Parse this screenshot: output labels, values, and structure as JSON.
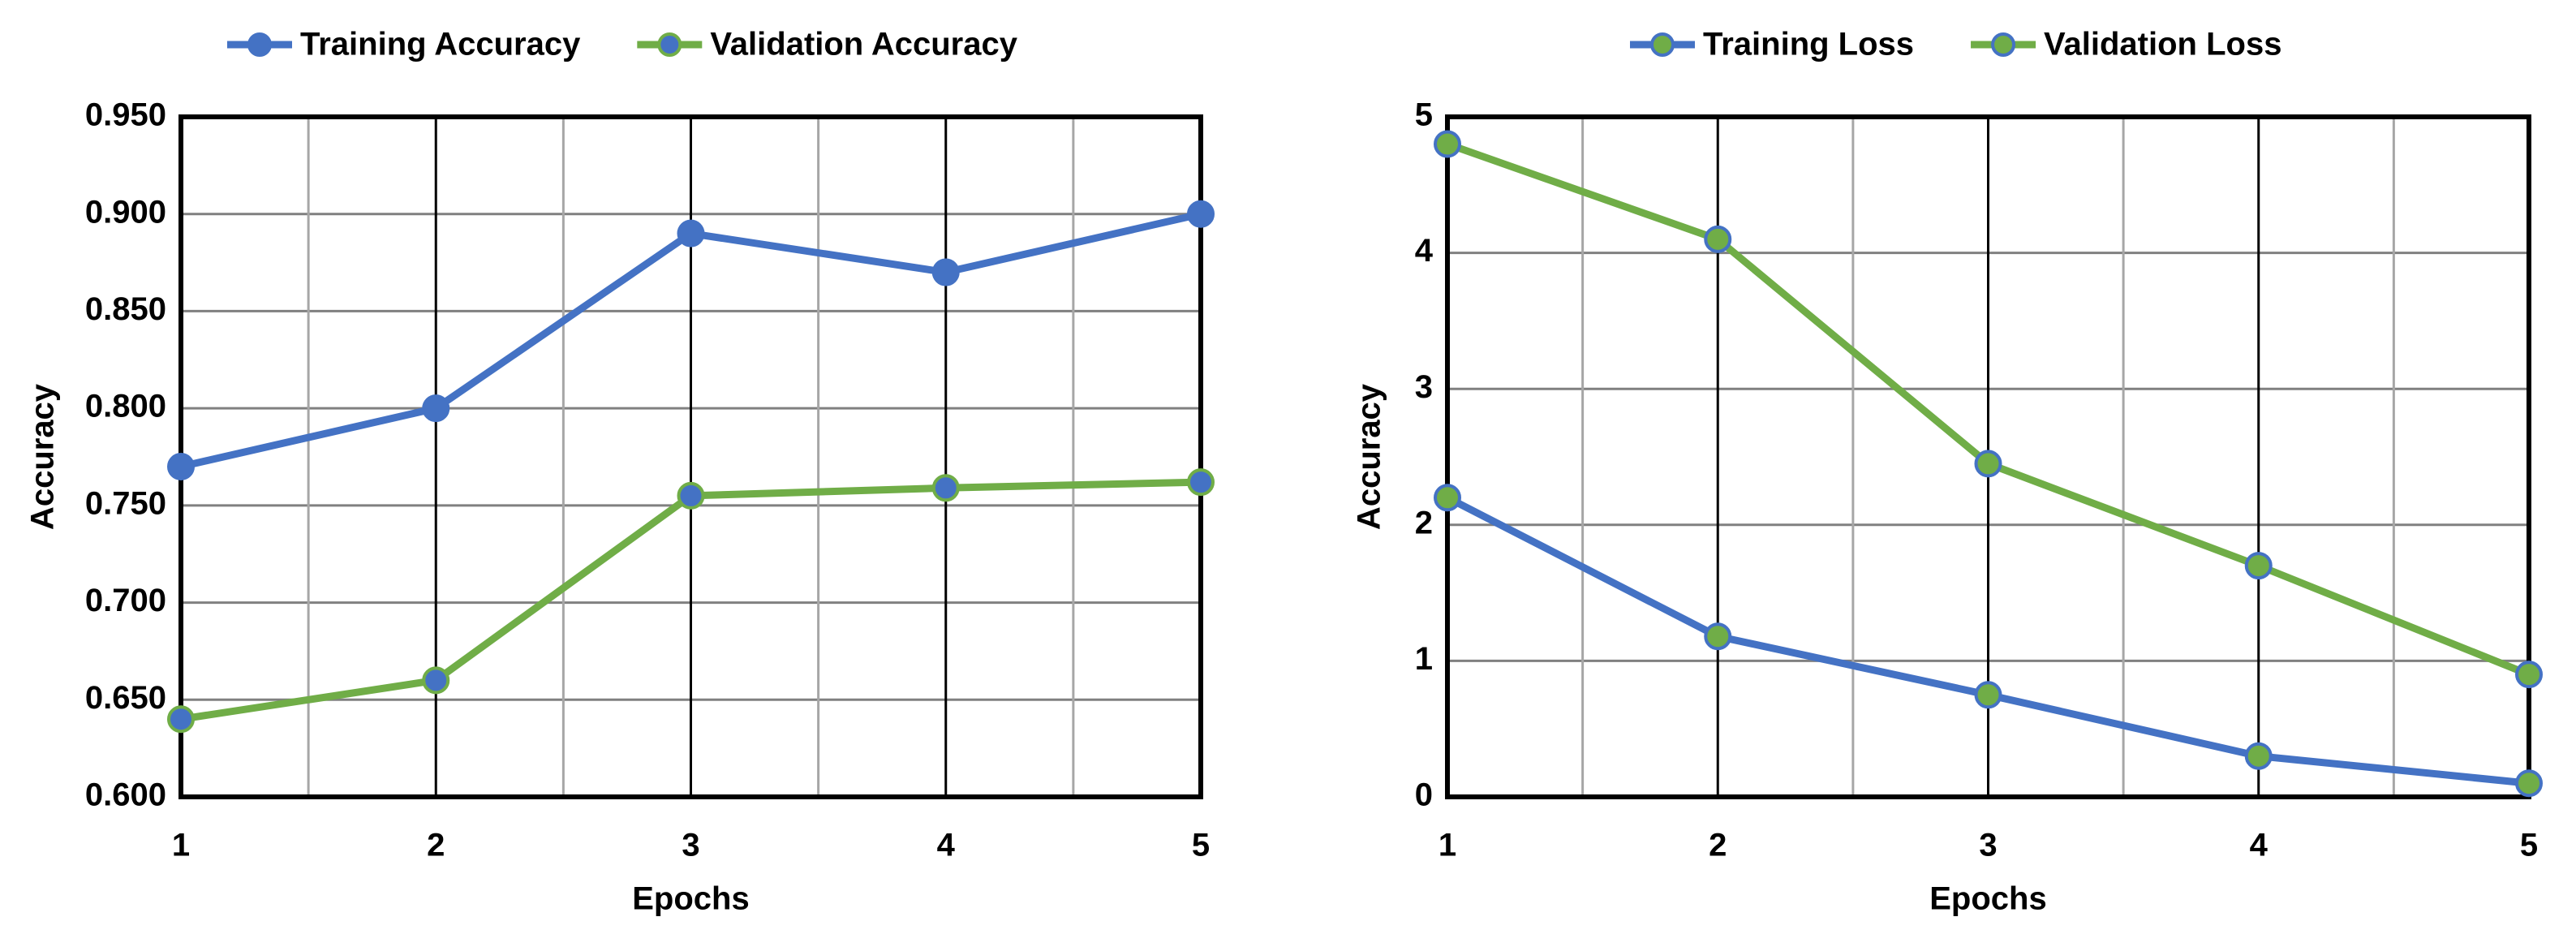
{
  "chart_data": [
    {
      "type": "line",
      "xlabel": "Epochs",
      "ylabel": "Accuracy",
      "x": [
        1,
        2,
        3,
        4,
        5
      ],
      "xlim": [
        1,
        5
      ],
      "xticks": [
        1,
        2,
        3,
        4,
        5
      ],
      "ylim": [
        0.6,
        0.95
      ],
      "yticks": [
        {
          "value": 0.6,
          "label": "0.600"
        },
        {
          "value": 0.65,
          "label": "0.650"
        },
        {
          "value": 0.7,
          "label": "0.700"
        },
        {
          "value": 0.75,
          "label": "0.750"
        },
        {
          "value": 0.8,
          "label": "0.800"
        },
        {
          "value": 0.85,
          "label": "0.850"
        },
        {
          "value": 0.9,
          "label": "0.900"
        },
        {
          "value": 0.95,
          "label": "0.950"
        }
      ],
      "grid": true,
      "series": [
        {
          "name": "Training Accuracy",
          "color": "#4472c4",
          "marker_color": "#4472c4",
          "marker_edge": "#4472c4",
          "values": [
            0.77,
            0.8,
            0.89,
            0.87,
            0.9
          ]
        },
        {
          "name": "Validation Accuracy",
          "color": "#70ad47",
          "marker_color": "#4472c4",
          "marker_edge": "#70ad47",
          "values": [
            0.64,
            0.66,
            0.755,
            0.759,
            0.762
          ]
        }
      ]
    },
    {
      "type": "line",
      "xlabel": "Epochs",
      "ylabel": "Accuracy",
      "x": [
        1,
        2,
        3,
        4,
        5
      ],
      "xlim": [
        1,
        5
      ],
      "xticks": [
        1,
        2,
        3,
        4,
        5
      ],
      "ylim": [
        0,
        5
      ],
      "yticks": [
        0,
        1,
        2,
        3,
        4,
        5
      ],
      "grid": true,
      "series": [
        {
          "name": "Training Loss",
          "color": "#4472c4",
          "marker_color": "#70ad47",
          "marker_edge": "#4472c4",
          "values": [
            2.2,
            1.18,
            0.75,
            0.3,
            0.1
          ]
        },
        {
          "name": "Validation Loss",
          "color": "#70ad47",
          "marker_color": "#70ad47",
          "marker_edge": "#4472c4",
          "values": [
            4.8,
            4.1,
            2.45,
            1.7,
            0.9
          ]
        }
      ]
    }
  ]
}
